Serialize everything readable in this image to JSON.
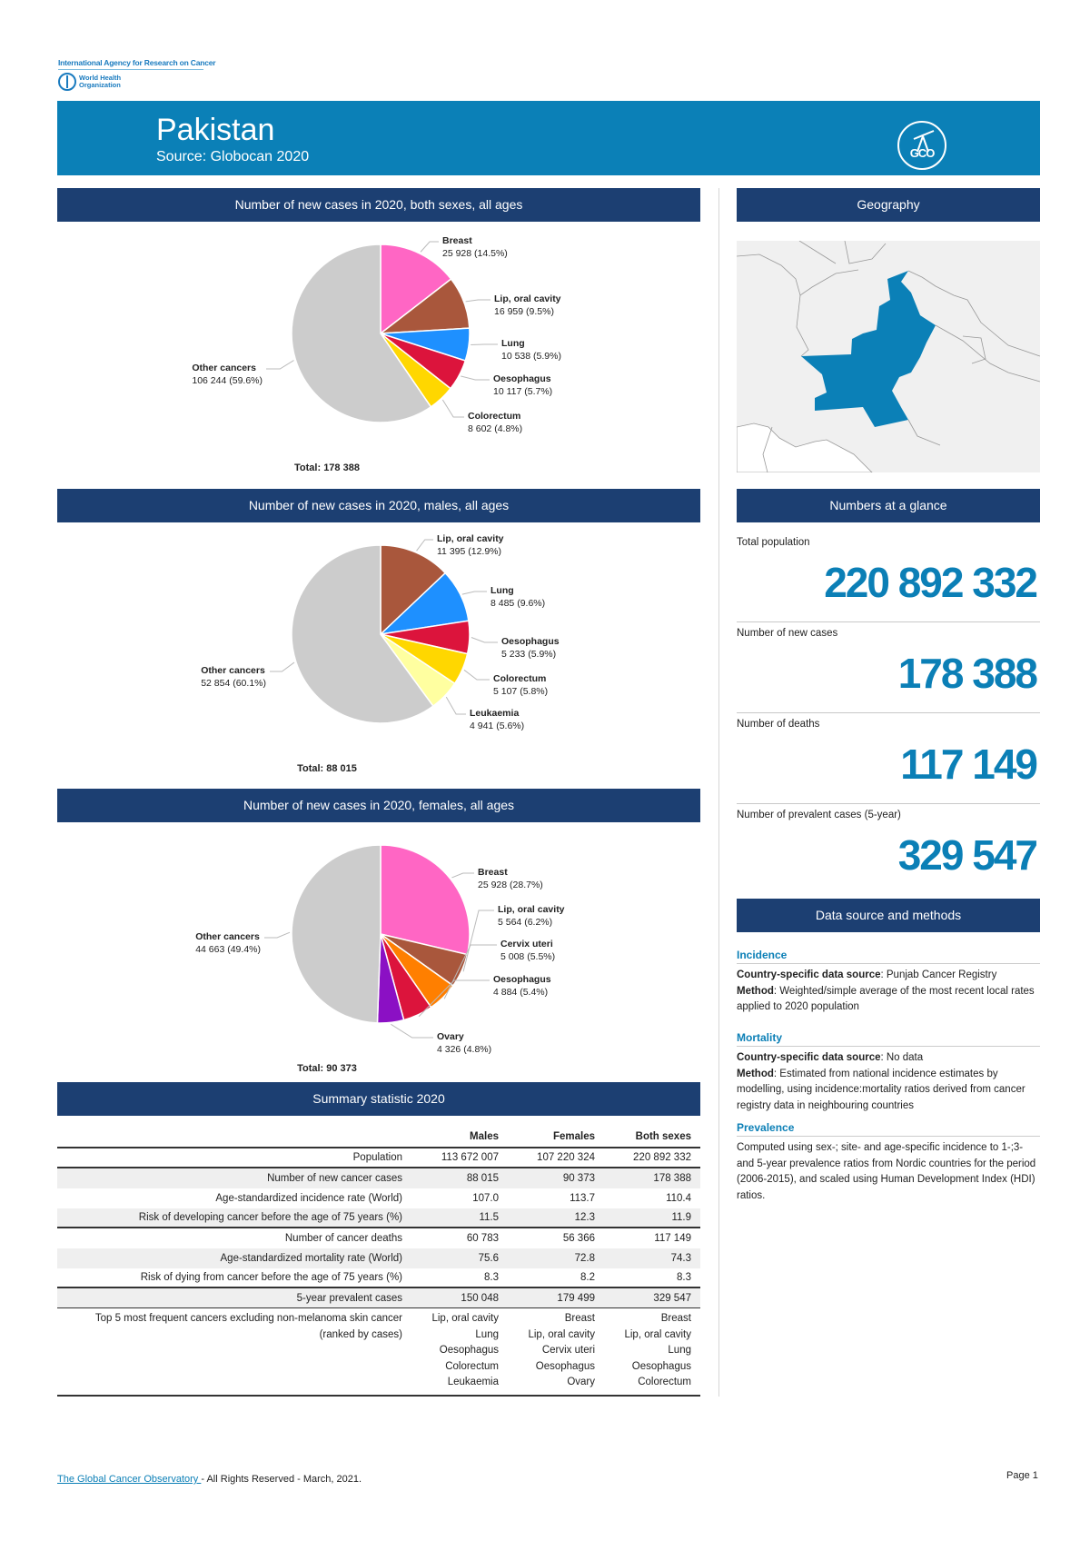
{
  "header": {
    "iarc": "International Agency for Research on Cancer",
    "who": "World Health Organization",
    "country": "Pakistan",
    "source": "Source: Globocan 2020",
    "logo": "GCO"
  },
  "chart_data": [
    {
      "type": "pie",
      "title": "Number of new cases in 2020, both sexes, all ages",
      "total": "Total: 178 388",
      "slices": [
        {
          "label": "Breast",
          "value": 25928,
          "text": "25 928 (14.5%)",
          "color": "#ff66c4"
        },
        {
          "label": "Lip, oral cavity",
          "value": 16959,
          "text": "16 959 (9.5%)",
          "color": "#a9573c"
        },
        {
          "label": "Lung",
          "value": 10538,
          "text": "10 538 (5.9%)",
          "color": "#1e90ff"
        },
        {
          "label": "Oesophagus",
          "value": 10117,
          "text": "10 117 (5.7%)",
          "color": "#dc143c"
        },
        {
          "label": "Colorectum",
          "value": 8602,
          "text": "8 602 (4.8%)",
          "color": "#ffd700"
        },
        {
          "label": "Other cancers",
          "value": 106244,
          "text": "106 244 (59.6%)",
          "color": "#cccccc"
        }
      ]
    },
    {
      "type": "pie",
      "title": "Number of new cases in 2020, males, all ages",
      "total": "Total: 88 015",
      "slices": [
        {
          "label": "Lip, oral cavity",
          "value": 11395,
          "text": "11 395 (12.9%)",
          "color": "#a9573c"
        },
        {
          "label": "Lung",
          "value": 8485,
          "text": "8 485 (9.6%)",
          "color": "#1e90ff"
        },
        {
          "label": "Oesophagus",
          "value": 5233,
          "text": "5 233 (5.9%)",
          "color": "#dc143c"
        },
        {
          "label": "Colorectum",
          "value": 5107,
          "text": "5 107 (5.8%)",
          "color": "#ffd700"
        },
        {
          "label": "Leukaemia",
          "value": 4941,
          "text": "4 941 (5.6%)",
          "color": "#ffffa0"
        },
        {
          "label": "Other cancers",
          "value": 52854,
          "text": "52 854 (60.1%)",
          "color": "#cccccc"
        }
      ]
    },
    {
      "type": "pie",
      "title": "Number of new cases in 2020, females, all ages",
      "total": "Total: 90 373",
      "slices": [
        {
          "label": "Breast",
          "value": 25928,
          "text": "25 928 (28.7%)",
          "color": "#ff66c4"
        },
        {
          "label": "Lip, oral cavity",
          "value": 5564,
          "text": "5 564 (6.2%)",
          "color": "#a9573c"
        },
        {
          "label": "Cervix uteri",
          "value": 5008,
          "text": "5 008 (5.5%)",
          "color": "#ff7f00"
        },
        {
          "label": "Oesophagus",
          "value": 4884,
          "text": "4 884 (5.4%)",
          "color": "#dc143c"
        },
        {
          "label": "Ovary",
          "value": 4326,
          "text": "4 326 (4.8%)",
          "color": "#8b10c4"
        },
        {
          "label": "Other cancers",
          "value": 44663,
          "text": "44 663 (49.4%)",
          "color": "#cccccc"
        }
      ]
    }
  ],
  "geography": {
    "title": "Geography",
    "highlight_color": "#0b80b7"
  },
  "glance": {
    "title": "Numbers at a glance",
    "items": [
      {
        "label": "Total population",
        "value": "220 892 332"
      },
      {
        "label": "Number of new cases",
        "value": "178 388"
      },
      {
        "label": "Number of deaths",
        "value": "117 149"
      },
      {
        "label": "Number of prevalent cases (5-year)",
        "value": "329 547"
      }
    ]
  },
  "methods": {
    "title": "Data source and methods",
    "sections": [
      {
        "title": "Incidence",
        "lines": [
          {
            "b": "Country-specific data source",
            "t": ": Punjab Cancer Registry"
          },
          {
            "b": "Method",
            "t": ": Weighted/simple average of the most recent local rates applied to 2020 population"
          }
        ]
      },
      {
        "title": "Mortality",
        "lines": [
          {
            "b": "Country-specific data source",
            "t": ": No data"
          },
          {
            "b": "Method",
            "t": ": Estimated from national incidence estimates by modelling, using incidence:mortality ratios derived from cancer registry data in neighbouring countries"
          }
        ]
      },
      {
        "title": "Prevalence",
        "lines": [
          {
            "b": "",
            "t": "Computed using sex-; site- and age-specific incidence to 1-;3- and 5-year prevalence ratios from Nordic countries for the period (2006-2015), and scaled using Human Development Index (HDI) ratios."
          }
        ]
      }
    ]
  },
  "summary": {
    "title": "Summary statistic 2020",
    "columns": [
      "Males",
      "Females",
      "Both sexes"
    ],
    "rows": [
      {
        "label": "Population",
        "values": [
          "113 672 007",
          "107 220 324",
          "220 892 332"
        ]
      },
      {
        "label": "Number of new cancer cases",
        "values": [
          "88 015",
          "90 373",
          "178 388"
        ]
      },
      {
        "label": "Age-standardized incidence rate (World)",
        "values": [
          "107.0",
          "113.7",
          "110.4"
        ]
      },
      {
        "label": "Risk of developing cancer before the age of 75 years (%)",
        "values": [
          "11.5",
          "12.3",
          "11.9"
        ]
      },
      {
        "label": "Number of cancer deaths",
        "values": [
          "60 783",
          "56 366",
          "117 149"
        ]
      },
      {
        "label": "Age-standardized mortality rate (World)",
        "values": [
          "75.6",
          "72.8",
          "74.3"
        ]
      },
      {
        "label": "Risk of dying from cancer before the age of 75 years (%)",
        "values": [
          "8.3",
          "8.2",
          "8.3"
        ]
      },
      {
        "label": "5-year prevalent cases",
        "values": [
          "150 048",
          "179 499",
          "329 547"
        ]
      }
    ],
    "top5": {
      "label": [
        "Top 5 most frequent cancers excluding non-melanoma skin cancer",
        "(ranked by cases)"
      ],
      "values": [
        [
          "Lip, oral cavity",
          "Lung",
          "Oesophagus",
          "Colorectum",
          "Leukaemia"
        ],
        [
          "Breast",
          "Lip, oral cavity",
          "Cervix uteri",
          "Oesophagus",
          "Ovary"
        ],
        [
          "Breast",
          "Lip, oral cavity",
          "Lung",
          "Oesophagus",
          "Colorectum"
        ]
      ]
    }
  },
  "footer": {
    "link": "The Global Cancer Observatory ",
    "rest": " - All Rights Reserved - March, 2021.",
    "page": "Page 1"
  }
}
